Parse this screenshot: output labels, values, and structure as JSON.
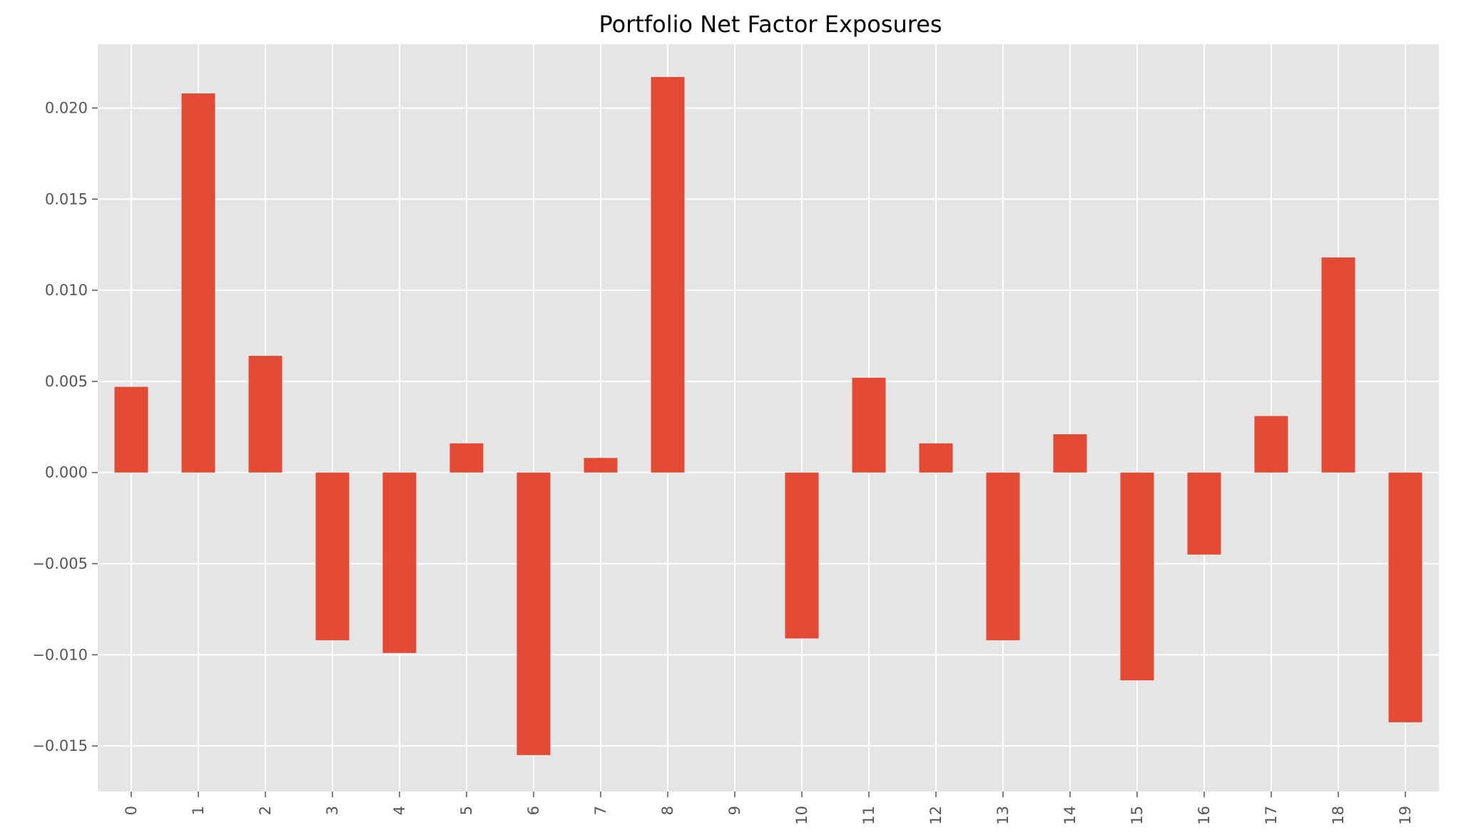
{
  "chart_data": {
    "type": "bar",
    "title": "Portfolio Net Factor Exposures",
    "xlabel": "",
    "ylabel": "",
    "categories": [
      "0",
      "1",
      "2",
      "3",
      "4",
      "5",
      "6",
      "7",
      "8",
      "9",
      "10",
      "11",
      "12",
      "13",
      "14",
      "15",
      "16",
      "17",
      "18",
      "19"
    ],
    "values": [
      0.0047,
      0.0208,
      0.0064,
      -0.0092,
      -0.0099,
      0.0016,
      -0.0155,
      0.0008,
      0.0217,
      0.0,
      -0.0091,
      0.0052,
      0.0016,
      -0.0092,
      0.0021,
      -0.0114,
      -0.0045,
      0.0031,
      0.0118,
      -0.0137
    ],
    "ylim": [
      -0.0175,
      0.0235
    ],
    "yticks": [
      -0.015,
      -0.01,
      -0.005,
      0.0,
      0.005,
      0.01,
      0.015,
      0.02
    ],
    "ytick_labels": [
      "−0.015",
      "−0.010",
      "−0.005",
      "0.000",
      "0.005",
      "0.010",
      "0.015",
      "0.020"
    ],
    "grid": true,
    "colors": {
      "bar": "#E24A33",
      "plot_background": "#E5E5E5",
      "grid": "#FFFFFF",
      "tick_text": "#555555"
    }
  }
}
